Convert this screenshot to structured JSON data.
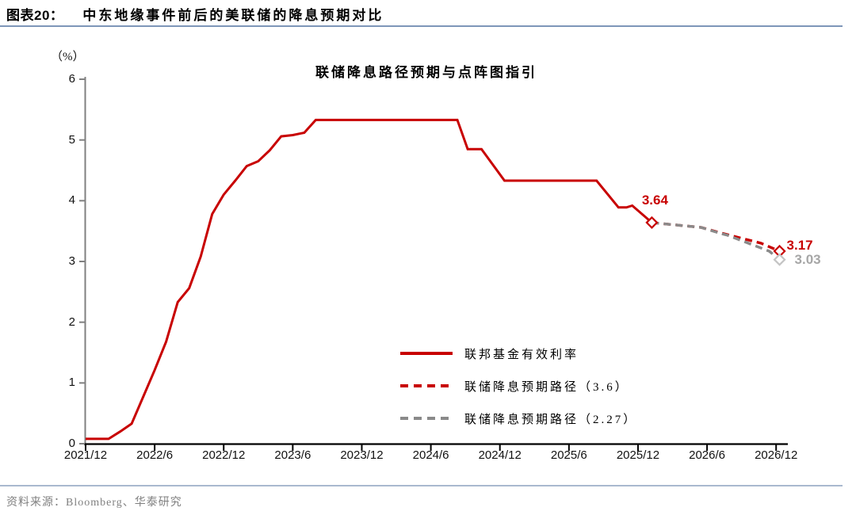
{
  "header": {
    "label": "图表20：",
    "title": "中东地缘事件前后的美联储的降息预期对比"
  },
  "source": {
    "text": "资料来源：Bloomberg、华泰研究"
  },
  "colors": {
    "accent_red": "#C80000",
    "dashed_gray": "#8A8A8A",
    "light_gray_marker": "#C4C4C4",
    "light_gray_label": "#A6A6A6",
    "axis_gray": "#808080",
    "axis_black": "#000000",
    "divider_top": "#7E96B8",
    "divider_bottom": "#A9B9CF",
    "source_gray": "#808080"
  },
  "chart_data": {
    "type": "line",
    "title": "联储降息路径预期与点阵图指引",
    "unit_label": "（%）",
    "grid": false,
    "legend_position": "inside-lower-right",
    "x_axis": {
      "tick_labels": [
        "2021/12",
        "2022/6",
        "2022/12",
        "2023/6",
        "2023/12",
        "2024/6",
        "2024/12",
        "2025/6",
        "2025/12",
        "2026/6",
        "2026/12"
      ],
      "tick_months": [
        0,
        6,
        12,
        18,
        24,
        30,
        36,
        42,
        48,
        54,
        60
      ]
    },
    "y_axis": {
      "tick_values": [
        0,
        1,
        2,
        3,
        4,
        5,
        6
      ],
      "range": [
        0,
        6
      ]
    },
    "series": [
      {
        "name": "联邦基金有效利率",
        "color": "#C80000",
        "style": "solid",
        "points": [
          [
            0,
            0.08
          ],
          [
            1,
            0.08
          ],
          [
            2,
            0.08
          ],
          [
            3,
            0.2
          ],
          [
            4,
            0.33
          ],
          [
            5,
            0.77
          ],
          [
            6,
            1.21
          ],
          [
            7,
            1.68
          ],
          [
            8,
            2.33
          ],
          [
            9,
            2.56
          ],
          [
            10,
            3.08
          ],
          [
            11,
            3.78
          ],
          [
            12,
            4.1
          ],
          [
            13,
            4.33
          ],
          [
            14,
            4.57
          ],
          [
            15,
            4.65
          ],
          [
            16,
            4.83
          ],
          [
            17,
            5.06
          ],
          [
            18,
            5.08
          ],
          [
            19,
            5.12
          ],
          [
            20,
            5.33
          ],
          [
            32.3,
            5.33
          ],
          [
            33.2,
            4.85
          ],
          [
            34.4,
            4.85
          ],
          [
            36.4,
            4.33
          ],
          [
            44.4,
            4.33
          ],
          [
            46.3,
            3.89
          ],
          [
            47.0,
            3.89
          ],
          [
            47.5,
            3.92
          ],
          [
            49.2,
            3.64
          ]
        ]
      },
      {
        "name": "联储降息预期路径（3.6）",
        "color": "#C80000",
        "style": "dashed",
        "points": [
          [
            49.2,
            3.64
          ],
          [
            53.5,
            3.56
          ],
          [
            55.2,
            3.47
          ],
          [
            58.7,
            3.3
          ],
          [
            60.3,
            3.17
          ]
        ]
      },
      {
        "name": "联储降息预期路径（2.27）",
        "color": "#8A8A8A",
        "style": "dashed",
        "points": [
          [
            49.2,
            3.64
          ],
          [
            53.5,
            3.56
          ],
          [
            55.2,
            3.46
          ],
          [
            55.8,
            3.43
          ],
          [
            59.4,
            3.17
          ],
          [
            60.3,
            3.03
          ]
        ]
      }
    ],
    "markers": [
      {
        "x": 49.2,
        "y": 3.64,
        "label": "3.64",
        "color": "#C80000",
        "label_color": "#C80000"
      },
      {
        "x": 60.3,
        "y": 3.17,
        "label": "3.17",
        "color": "#C80000",
        "label_color": "#C80000"
      },
      {
        "x": 60.3,
        "y": 3.03,
        "label": "3.03",
        "color": "#C4C4C4",
        "label_color": "#A6A6A6"
      }
    ]
  }
}
